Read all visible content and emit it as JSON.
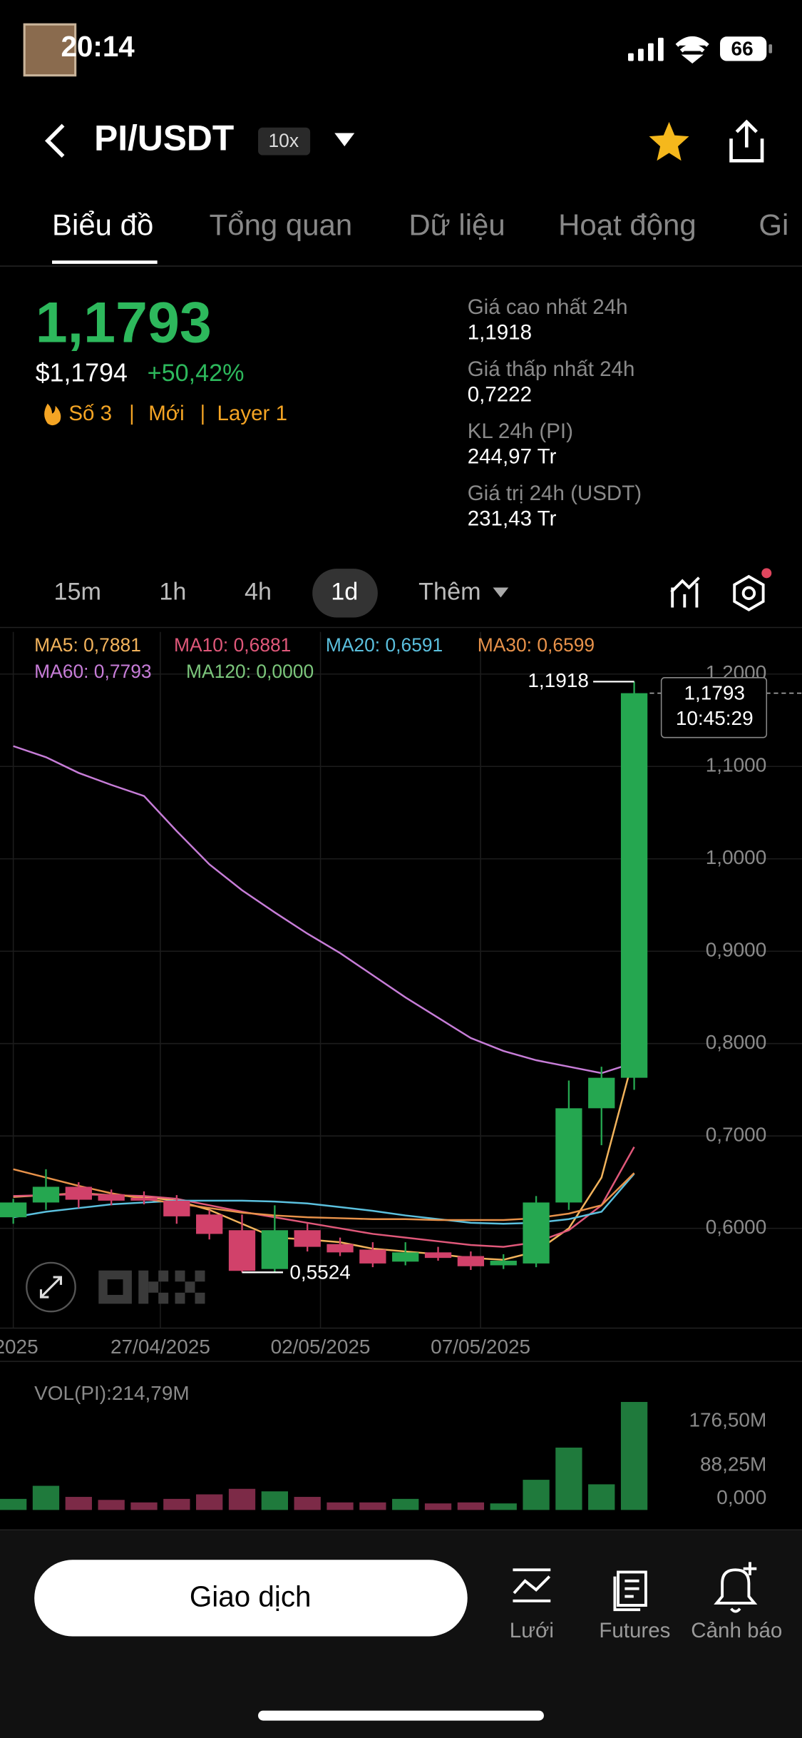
{
  "status_bar": {
    "time": "20:14",
    "battery": "66"
  },
  "header": {
    "pair": "PI/USDT",
    "leverage": "10x"
  },
  "tabs": [
    "Biểu đồ",
    "Tổng quan",
    "Dữ liệu",
    "Hoạt động",
    "Gi"
  ],
  "price": {
    "last": "1,1793",
    "usd": "$1,1794",
    "change": "+50,42%",
    "tags": [
      "Số 3",
      "Mới",
      "Layer 1"
    ]
  },
  "stats": [
    {
      "label": "Giá cao nhất 24h",
      "value": "1,1918"
    },
    {
      "label": "Giá thấp nhất 24h",
      "value": "0,7222"
    },
    {
      "label": "KL 24h (PI)",
      "value": "244,97 Tr"
    },
    {
      "label": "Giá trị 24h (USDT)",
      "value": "231,43 Tr"
    }
  ],
  "timeframes": [
    "15m",
    "1h",
    "4h",
    "1d",
    "Thêm"
  ],
  "chart_data": [
    {
      "type": "candlestick",
      "legend": [
        {
          "text": "MA5: 0,7881",
          "color": "#f2b35c"
        },
        {
          "text": "MA10: 0,6881",
          "color": "#e0587a"
        },
        {
          "text": "MA20: 0,6591",
          "color": "#5bc0de"
        },
        {
          "text": "MA30: 0,6599",
          "color": "#e8924a"
        },
        {
          "text": "MA60: 0,7793",
          "color": "#c77dd8"
        },
        {
          "text": "MA120: 0,0000",
          "color": "#7cc77c"
        }
      ],
      "open": [
        0.612,
        0.628,
        0.645,
        0.637,
        0.633,
        0.63,
        0.615,
        0.598,
        0.556,
        0.598,
        0.583,
        0.577,
        0.564,
        0.574,
        0.57,
        0.56,
        0.562,
        0.628,
        0.73,
        0.763
      ],
      "high": [
        0.632,
        0.664,
        0.65,
        0.642,
        0.64,
        0.636,
        0.62,
        0.615,
        0.625,
        0.605,
        0.59,
        0.585,
        0.585,
        0.58,
        0.575,
        0.572,
        0.635,
        0.76,
        0.775,
        1.1918
      ],
      "low": [
        0.605,
        0.62,
        0.622,
        0.625,
        0.626,
        0.605,
        0.588,
        0.5524,
        0.553,
        0.575,
        0.57,
        0.558,
        0.56,
        0.565,
        0.555,
        0.556,
        0.558,
        0.62,
        0.69,
        0.75
      ],
      "close": [
        0.628,
        0.645,
        0.631,
        0.63,
        0.63,
        0.613,
        0.594,
        0.554,
        0.598,
        0.58,
        0.574,
        0.562,
        0.574,
        0.568,
        0.559,
        0.565,
        0.628,
        0.73,
        0.763,
        1.1793
      ],
      "series": [
        {
          "color": "#f2b35c",
          "values": [
            0.634,
            0.636,
            0.638,
            0.636,
            0.634,
            0.63,
            0.62,
            0.605,
            0.59,
            0.588,
            0.585,
            0.578,
            0.575,
            0.572,
            0.568,
            0.566,
            0.575,
            0.6,
            0.655,
            0.7881
          ]
        },
        {
          "color": "#e0587a",
          "values": [
            0.635,
            0.636,
            0.637,
            0.636,
            0.635,
            0.632,
            0.625,
            0.618,
            0.612,
            0.606,
            0.6,
            0.594,
            0.59,
            0.586,
            0.582,
            0.58,
            0.585,
            0.598,
            0.625,
            0.6881
          ]
        },
        {
          "color": "#5bc0de",
          "values": [
            0.612,
            0.618,
            0.622,
            0.626,
            0.628,
            0.63,
            0.63,
            0.63,
            0.629,
            0.627,
            0.623,
            0.619,
            0.614,
            0.61,
            0.606,
            0.605,
            0.606,
            0.61,
            0.618,
            0.6591
          ]
        },
        {
          "color": "#e8924a",
          "values": [
            0.664,
            0.655,
            0.646,
            0.638,
            0.632,
            0.627,
            0.622,
            0.617,
            0.614,
            0.612,
            0.611,
            0.61,
            0.61,
            0.609,
            0.609,
            0.609,
            0.611,
            0.616,
            0.625,
            0.6599
          ]
        },
        {
          "color": "#c77dd8",
          "values": [
            1.122,
            1.11,
            1.093,
            1.08,
            1.068,
            1.03,
            0.994,
            0.966,
            0.942,
            0.919,
            0.898,
            0.874,
            0.85,
            0.828,
            0.806,
            0.792,
            0.782,
            0.775,
            0.768,
            0.7793
          ]
        }
      ],
      "up_color": "#25a750",
      "down_color": "#d1416a",
      "ylim": [
        0.492,
        1.2456
      ],
      "yticks": [
        {
          "value": 1.2,
          "label": "1,2000"
        },
        {
          "value": 1.1,
          "label": "1,1000"
        },
        {
          "value": 1.0,
          "label": "1,0000"
        },
        {
          "value": 0.9,
          "label": "0,9000"
        },
        {
          "value": 0.8,
          "label": "0,8000"
        },
        {
          "value": 0.7,
          "label": "0,7000"
        },
        {
          "value": 0.6,
          "label": "0,6000"
        }
      ],
      "xticks": [
        {
          "value": 0,
          "label": "/2025"
        },
        {
          "value": 4.5,
          "label": "27/04/2025"
        },
        {
          "value": 9.4,
          "label": "02/05/2025"
        },
        {
          "value": 14.3,
          "label": "07/05/2025"
        }
      ],
      "high_label": "1,1918",
      "low_label": "0,5524",
      "last_label": "1,1793",
      "countdown": "10:45:29",
      "grid": true
    },
    {
      "type": "bar",
      "title": "VOL(PI):214,79M",
      "values": [
        22,
        48,
        26,
        20,
        15,
        22,
        31,
        42,
        37,
        26,
        15,
        15,
        22,
        13,
        15,
        13,
        60,
        124,
        51,
        214.79
      ],
      "up_color": "#1f7a3c",
      "down_color": "#7c2a47",
      "ylim": [
        0,
        280
      ],
      "yticks": [
        {
          "value": 176.5,
          "label": "176,50M"
        },
        {
          "value": 88.25,
          "label": "88,25M"
        },
        {
          "value": 0,
          "label": "0,000"
        }
      ]
    }
  ],
  "bottom_bar": {
    "trade": "Giao dịch",
    "items": [
      "Lưới",
      "Futures",
      "Cảnh báo"
    ]
  }
}
